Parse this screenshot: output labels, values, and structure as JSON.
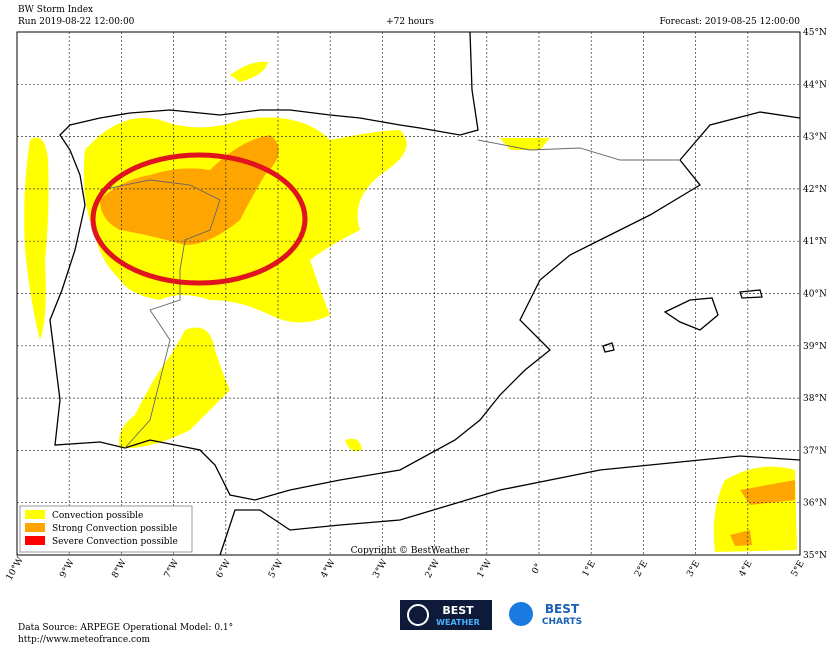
{
  "header": {
    "title": "BW Storm Index",
    "run": "Run 2019-08-22 12:00:00",
    "lead": "+72 hours",
    "forecast": "Forecast: 2019-08-25 12:00:00"
  },
  "lat_labels": [
    "35°N",
    "36°N",
    "37°N",
    "38°N",
    "39°N",
    "40°N",
    "41°N",
    "42°N",
    "43°N",
    "44°N",
    "45°N"
  ],
  "lon_labels": [
    "10°W",
    "9°W",
    "8°W",
    "7°W",
    "6°W",
    "5°W",
    "4°W",
    "3°W",
    "2°W",
    "1°W",
    "0°",
    "1°E",
    "2°E",
    "3°E",
    "4°E",
    "5°E"
  ],
  "legend": [
    {
      "label": "Convection possible",
      "color": "#ffff00"
    },
    {
      "label": "Strong Convection possible",
      "color": "#ffa500"
    },
    {
      "label": "Severe Convection possible",
      "color": "#ff0000"
    }
  ],
  "copyright": "Copyright © BestWeather",
  "footer": {
    "source": "Data Source: ARPEGE Operational Model: 0.1°",
    "url": "http://www.meteofrance.com"
  },
  "logos": [
    {
      "top": "BEST",
      "bottom": "WEATHER"
    },
    {
      "top": "BEST",
      "bottom": "CHARTS"
    }
  ]
}
